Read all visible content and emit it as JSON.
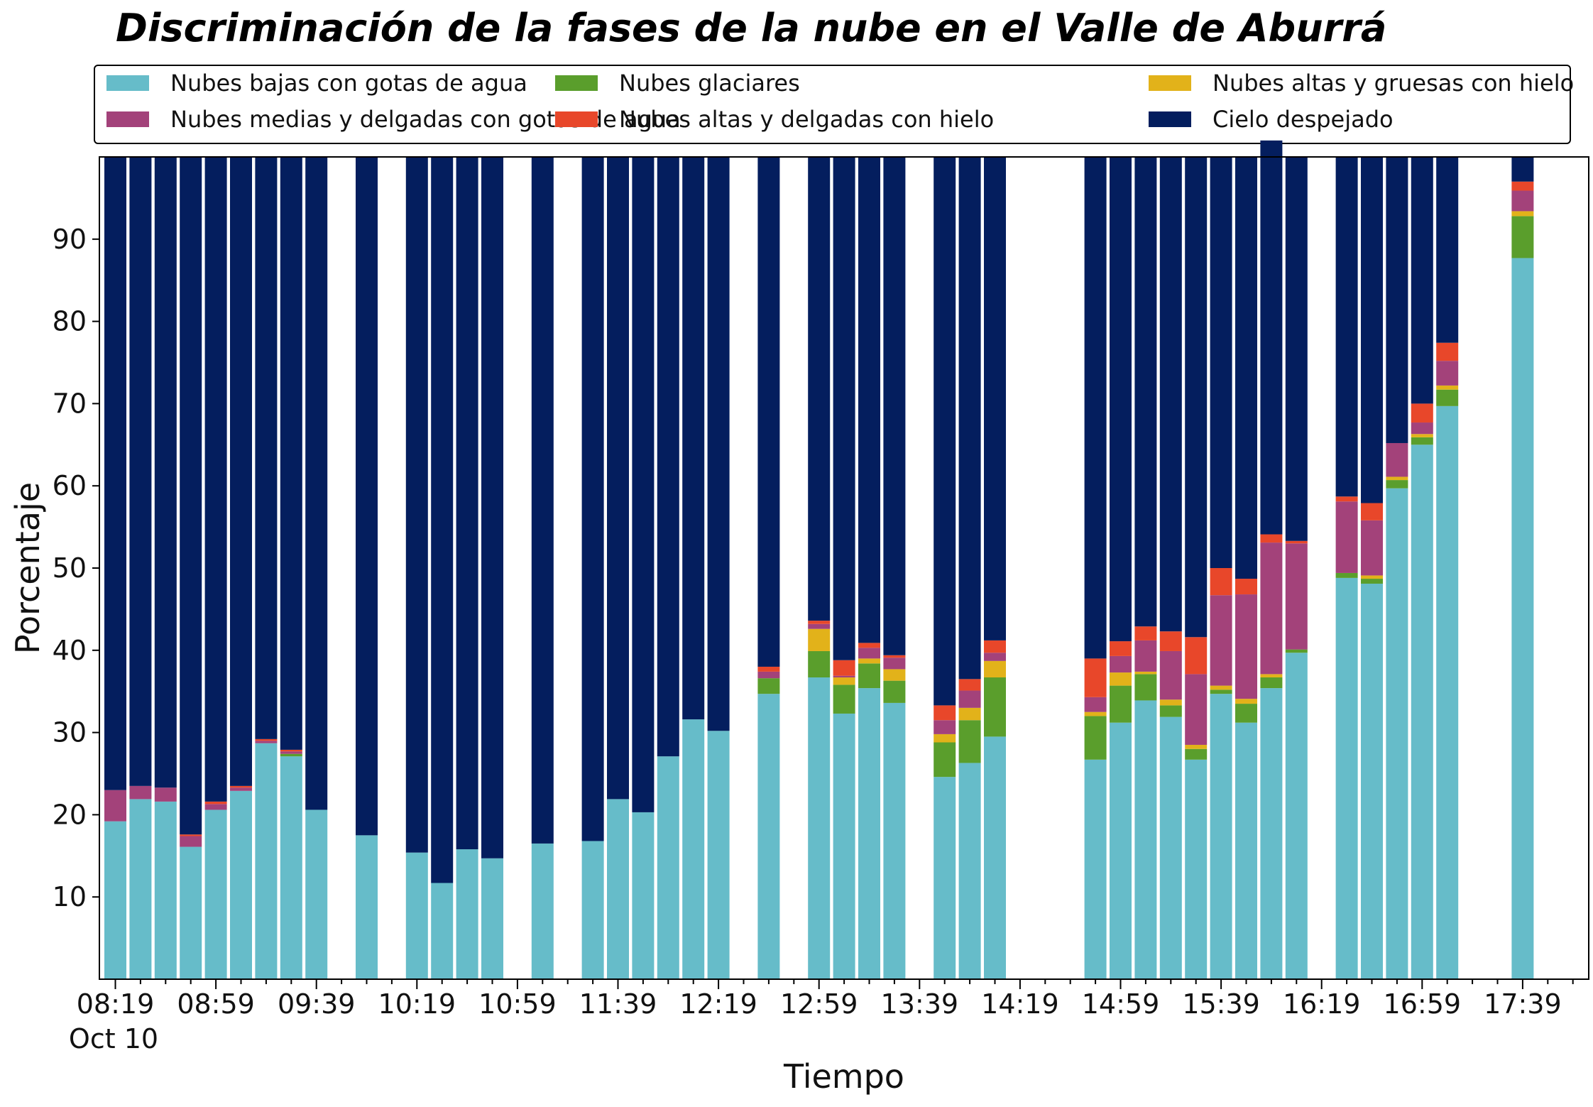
{
  "chart_data": {
    "type": "bar",
    "stacked": true,
    "title": "Discriminación de la fases de la nube en el Valle de Aburrá",
    "xlabel": "Tiempo",
    "ylabel": "Porcentaje",
    "date_label": "Oct 10",
    "ylim": [
      0,
      100
    ],
    "y_ticks": [
      10,
      20,
      30,
      40,
      50,
      60,
      70,
      80,
      90
    ],
    "x_ticks": [
      "08:19",
      "08:59",
      "09:39",
      "10:19",
      "10:59",
      "11:39",
      "12:19",
      "12:59",
      "13:39",
      "14:19",
      "14:59",
      "15:39",
      "16:19",
      "16:59",
      "17:39"
    ],
    "legend_position": "top",
    "grid": false,
    "categories": [
      "08:19",
      "08:29",
      "08:39",
      "08:49",
      "08:59",
      "09:09",
      "09:19",
      "09:29",
      "09:39",
      "09:49",
      "09:59",
      "10:09",
      "10:19",
      "10:29",
      "10:39",
      "10:49",
      "10:59",
      "11:09",
      "11:19",
      "11:29",
      "11:39",
      "11:49",
      "11:59",
      "12:09",
      "12:19",
      "12:29",
      "12:39",
      "12:49",
      "12:59",
      "13:09",
      "13:19",
      "13:29",
      "13:39",
      "13:49",
      "13:59",
      "14:09",
      "14:19",
      "14:29",
      "14:39",
      "14:49",
      "14:59",
      "15:09",
      "15:19",
      "15:29",
      "15:39",
      "15:49",
      "15:59",
      "16:09",
      "16:19",
      "16:29",
      "16:39",
      "16:49",
      "16:59",
      "17:09",
      "17:19",
      "17:29",
      "17:39",
      "17:49"
    ],
    "series": [
      {
        "name": "Nubes bajas con gotas de agua",
        "color": "#66bcc9",
        "values": [
          19.2,
          21.9,
          21.6,
          16.1,
          20.6,
          22.9,
          28.7,
          27.1,
          20.6,
          null,
          17.5,
          null,
          15.4,
          11.7,
          15.8,
          14.7,
          null,
          16.5,
          null,
          16.8,
          21.9,
          20.3,
          27.1,
          31.6,
          30.2,
          null,
          34.7,
          null,
          36.7,
          32.3,
          35.4,
          33.6,
          null,
          24.6,
          26.3,
          29.5,
          null,
          null,
          null,
          26.7,
          31.2,
          33.9,
          31.9,
          26.7,
          34.7,
          31.2,
          35.4,
          39.7,
          null,
          48.8,
          48.1,
          59.7,
          65.0,
          69.7,
          null,
          null,
          87.7,
          null
        ]
      },
      {
        "name": "Nubes glaciares",
        "color": "#5a9e2c",
        "values": [
          0,
          0,
          0,
          0,
          0,
          0,
          0,
          0.3,
          0,
          null,
          0,
          null,
          0,
          0,
          0,
          0,
          null,
          0,
          null,
          0,
          0,
          0,
          0,
          0,
          0,
          null,
          1.9,
          null,
          3.2,
          3.5,
          3.0,
          2.7,
          null,
          4.2,
          5.2,
          7.2,
          null,
          null,
          null,
          5.3,
          4.5,
          3.2,
          1.4,
          1.3,
          0.5,
          2.3,
          1.3,
          0.4,
          null,
          0.6,
          0.6,
          1.0,
          0.9,
          2.0,
          null,
          null,
          5.1,
          null
        ]
      },
      {
        "name": "Nubes altas y gruesas con hielo",
        "color": "#e2b21a",
        "values": [
          0,
          0,
          0,
          0,
          0,
          0,
          0,
          0,
          0,
          null,
          0,
          null,
          0,
          0,
          0,
          0,
          null,
          0,
          null,
          0,
          0,
          0,
          0,
          0,
          0,
          null,
          0,
          null,
          2.7,
          0.9,
          0.6,
          1.4,
          null,
          1.0,
          1.5,
          2.0,
          null,
          null,
          null,
          0.5,
          1.6,
          0.3,
          0.7,
          0.5,
          0.5,
          0.6,
          0.4,
          0,
          null,
          0,
          0.4,
          0.4,
          0.4,
          0.5,
          null,
          null,
          0.6,
          null
        ]
      },
      {
        "name": "Nubes medias y delgadas con gotas de agua",
        "color": "#a3427a",
        "values": [
          3.8,
          1.6,
          1.7,
          1.3,
          0.7,
          0.4,
          0.3,
          0.3,
          0,
          null,
          0,
          null,
          0,
          0,
          0,
          0,
          null,
          0,
          null,
          0,
          0,
          0,
          0,
          0,
          0,
          null,
          0.8,
          null,
          0.6,
          0.2,
          1.3,
          1.4,
          null,
          1.7,
          2.1,
          1.0,
          null,
          null,
          null,
          1.8,
          2.0,
          3.8,
          5.9,
          8.6,
          11.0,
          12.7,
          16.0,
          12.9,
          null,
          8.7,
          6.7,
          4.1,
          1.4,
          3.0,
          null,
          null,
          2.5,
          null
        ]
      },
      {
        "name": "Nubes altas y delgadas con hielo",
        "color": "#e8472a",
        "values": [
          0,
          0,
          0,
          0.2,
          0.3,
          0.2,
          0.2,
          0.2,
          0,
          null,
          0,
          null,
          0,
          0,
          0,
          0,
          null,
          0,
          null,
          0,
          0,
          0,
          0,
          0,
          0,
          null,
          0.6,
          null,
          0.4,
          1.9,
          0.6,
          0.3,
          null,
          1.8,
          1.4,
          1.5,
          null,
          null,
          null,
          4.7,
          1.8,
          1.7,
          2.4,
          4.5,
          3.3,
          1.9,
          1.0,
          0.3,
          null,
          0.6,
          2.1,
          0,
          2.3,
          2.2,
          null,
          null,
          1.1,
          null
        ]
      },
      {
        "name": "Cielo despejado",
        "color": "#041e5e",
        "values": [
          77.0,
          76.5,
          76.7,
          82.4,
          78.4,
          76.5,
          70.8,
          72.1,
          79.4,
          null,
          82.5,
          null,
          84.6,
          88.3,
          84.2,
          85.3,
          null,
          83.5,
          null,
          83.2,
          78.1,
          79.7,
          72.9,
          68.4,
          69.8,
          null,
          62.0,
          null,
          56.4,
          61.2,
          59.1,
          60.6,
          null,
          66.7,
          63.5,
          58.8,
          null,
          null,
          null,
          61.0,
          58.9,
          57.1,
          57.7,
          58.4,
          50.0,
          51.3,
          47.9,
          46.7,
          null,
          41.3,
          42.1,
          34.8,
          30.0,
          22.6,
          null,
          null,
          3.0,
          null
        ]
      }
    ]
  }
}
